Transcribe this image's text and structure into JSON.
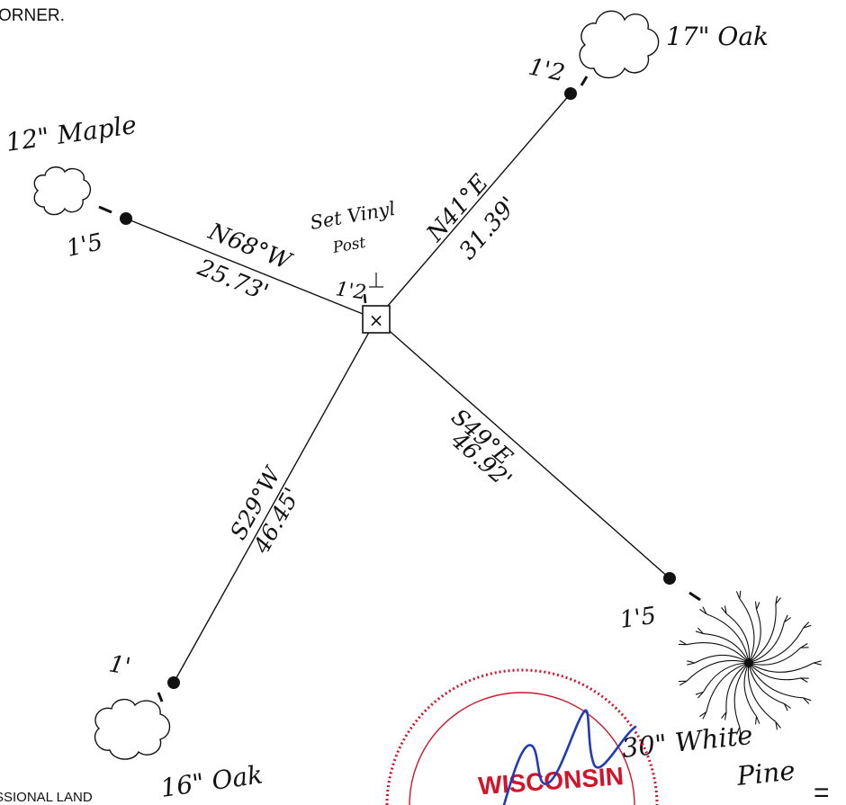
{
  "header": {
    "fragment": "ORNER."
  },
  "footer": {
    "fragment": "SSIONAL LAND",
    "trailing_glyph": "="
  },
  "center": {
    "monument": "Set Vinyl Post",
    "monument_line1": "Set Vinyl",
    "monument_line2": "Post",
    "height": "1'2",
    "symbol": "×"
  },
  "witnesses": [
    {
      "id": "ne",
      "tree": "17\" Oak",
      "tree_type": "deciduous",
      "bearing": "N41°E",
      "bearing_text": "N41°E",
      "distance": "31.39'",
      "height": "1'2"
    },
    {
      "id": "nw",
      "tree": "12\" Maple",
      "tree_type": "deciduous",
      "bearing": "N68°W",
      "bearing_text": "N68°W",
      "distance": "25.73'",
      "height": "1'5"
    },
    {
      "id": "se",
      "tree": "30\" White Pine",
      "tree_line1": "30\" White",
      "tree_line2": "Pine",
      "tree_type": "conifer",
      "bearing": "S49°E",
      "bearing_text": "S49°E",
      "distance": "46.92'",
      "height": "1'5"
    },
    {
      "id": "sw",
      "tree": "16\" Oak",
      "tree_type": "deciduous",
      "bearing": "S29°W",
      "bearing_text": "S29°W",
      "distance": "46.45'",
      "height": "1'"
    }
  ],
  "seal": {
    "text": "WISCONSIN",
    "color": "#d2142a",
    "signature_color": "#1f3bb8"
  },
  "colors": {
    "ink": "#111111"
  }
}
